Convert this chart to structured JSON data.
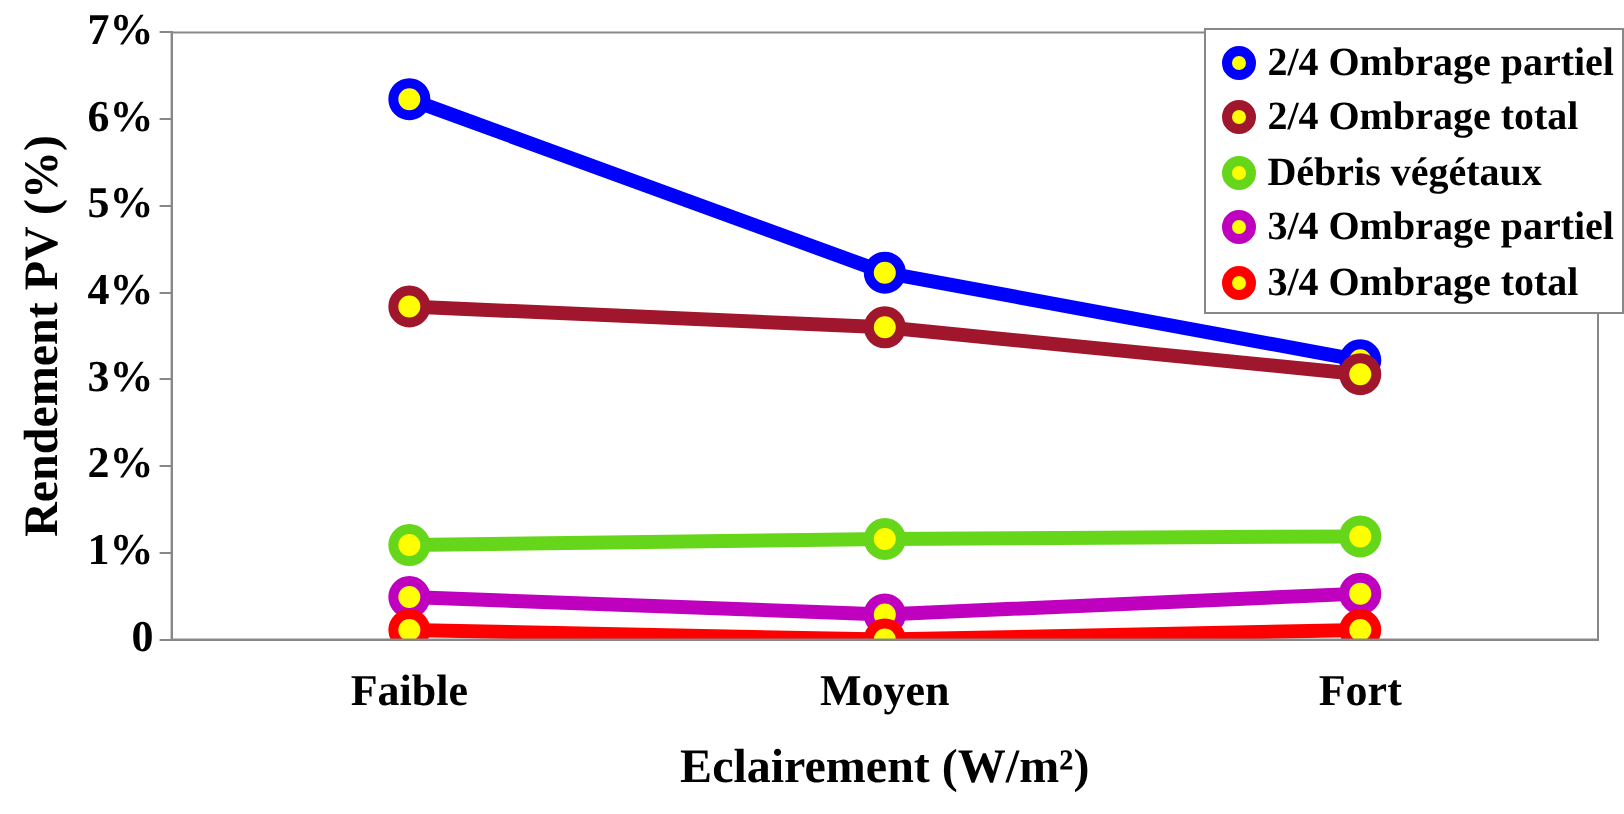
{
  "chart_data": {
    "type": "line",
    "xlabel": "Eclairement (W/m²)",
    "ylabel": "Rendement PV (%)",
    "categories": [
      "Faible",
      "Moyen",
      "Fort"
    ],
    "series": [
      {
        "name": "2/4 Ombrage partiel",
        "color": "#0000ff",
        "values": [
          6.23,
          4.23,
          3.22
        ]
      },
      {
        "name": "2/4 Ombrage total",
        "color": "#a0162c",
        "values": [
          3.84,
          3.6,
          3.06
        ]
      },
      {
        "name": "Débris végétaux",
        "color": "#66d61a",
        "values": [
          1.09,
          1.16,
          1.19
        ]
      },
      {
        "name": "3/4 Ombrage partiel",
        "color": "#bf00bf",
        "values": [
          0.49,
          0.29,
          0.53
        ]
      },
      {
        "name": "3/4 Ombrage total",
        "color": "#ff0000",
        "values": [
          0.11,
          0,
          0.11
        ]
      }
    ],
    "ylim": [
      0,
      7
    ],
    "yticks": [
      0,
      {
        "value": 1,
        "label": "1%"
      },
      {
        "value": 2,
        "label": "2%"
      },
      {
        "value": 3,
        "label": "3%"
      },
      {
        "value": 4,
        "label": "4%"
      },
      {
        "value": 5,
        "label": "5%"
      },
      {
        "value": 6,
        "label": "6%"
      },
      {
        "value": 7,
        "label": "7%"
      }
    ],
    "grid": false,
    "legend": "top right",
    "marker": "circle",
    "line_style": "solid"
  }
}
